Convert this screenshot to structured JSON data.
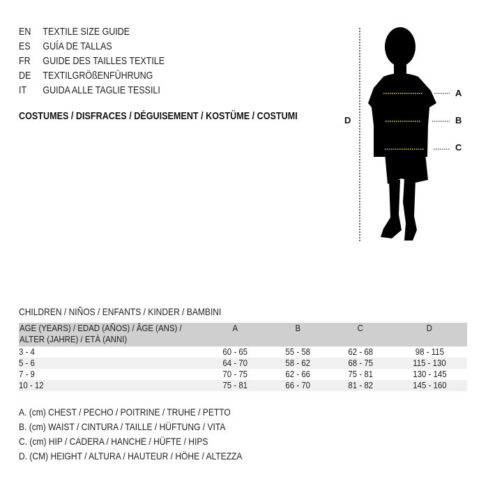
{
  "languages": [
    {
      "code": "EN",
      "title": "TEXTILE SIZE GUIDE"
    },
    {
      "code": "ES",
      "title": "GUÍA DE TALLAS"
    },
    {
      "code": "FR",
      "title": "GUIDE DES TAILLES TEXTILE"
    },
    {
      "code": "DE",
      "title": "TEXTILGRÖßENFÜHRUNG"
    },
    {
      "code": "IT",
      "title": "GUIDA ALLE TAGLIE TESSILI"
    }
  ],
  "category": "COSTUMES / DISFRACES / DÉGUISEMENT / KOSTÜME / COSTUMI",
  "figure": {
    "labels": {
      "a": "A",
      "b": "B",
      "c": "C",
      "d": "D"
    },
    "measure_line_color": "#e8e04a"
  },
  "table": {
    "caption": "CHILDREN / NIÑOS / ENFANTS / KINDER / BAMBINI",
    "header": {
      "age_line1": "AGE (YEARS) / EDAD (AÑOS) / ÂGE (ANS) /",
      "age_line2": "ALTER (JAHRE) / ETÀ (ANNI)",
      "a": "A",
      "b": "B",
      "c": "C",
      "d": "D"
    },
    "rows": [
      {
        "age": "3 - 4",
        "a": "60 - 65",
        "b": "55 - 58",
        "c": "62 - 68",
        "d": "98 - 115"
      },
      {
        "age": "5 - 6",
        "a": "64 - 70",
        "b": "58 - 62",
        "c": "68 - 75",
        "d": "115 - 130"
      },
      {
        "age": "7 - 9",
        "a": "70 - 75",
        "b": "62 - 66",
        "c": "75 - 81",
        "d": "130 - 145"
      },
      {
        "age": "10 - 12",
        "a": "75 - 81",
        "b": "66 - 70",
        "c": "81 - 82",
        "d": "145 - 160"
      }
    ]
  },
  "legend": [
    "A. (cm) CHEST / PECHO / POITRINE / TRUHE / PETTO",
    "B. (cm) WAIST / CINTURA / TAILLE / HÜFTUNG / VITA",
    "C. (cm) HIP / CADERA / HANCHE / HÜFTE / HIPS",
    "D. (CM) HEIGHT / ALTURA / HAUTEUR / HÖHE / ALTEZZA"
  ]
}
